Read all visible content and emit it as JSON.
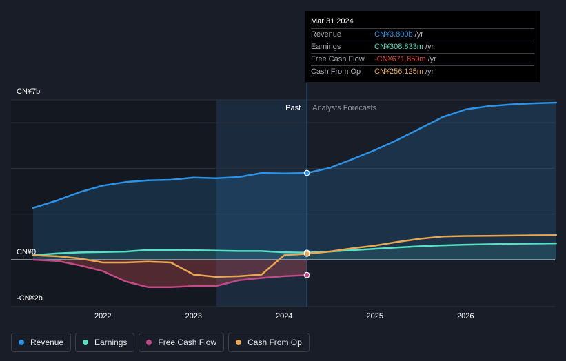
{
  "chart_data": {
    "type": "line",
    "title": "",
    "y_unit_labels": [
      "CN¥7b",
      "CN¥0",
      "-CN¥2b"
    ],
    "ylim": [
      -2,
      7
    ],
    "xlim": [
      2021.23,
      2027.0
    ],
    "x_ticks": [
      {
        "value": 2022,
        "label": "2022"
      },
      {
        "value": 2023,
        "label": "2023"
      },
      {
        "value": 2024,
        "label": "2024"
      },
      {
        "value": 2025,
        "label": "2025"
      },
      {
        "value": 2026,
        "label": "2026"
      }
    ],
    "gridlines": [
      7,
      6,
      4,
      2,
      0
    ],
    "forecast_split": 2024.25,
    "highlight_start": 2023.25,
    "past_label": "Past",
    "forecast_label": "Analysts Forecasts",
    "series": [
      {
        "name": "Revenue",
        "color": "#2e93e6",
        "area": true,
        "points": [
          [
            2021.23,
            2.27
          ],
          [
            2021.5,
            2.6
          ],
          [
            2021.75,
            2.97
          ],
          [
            2022.0,
            3.25
          ],
          [
            2022.25,
            3.4
          ],
          [
            2022.5,
            3.48
          ],
          [
            2022.75,
            3.5
          ],
          [
            2023.0,
            3.6
          ],
          [
            2023.25,
            3.57
          ],
          [
            2023.5,
            3.62
          ],
          [
            2023.75,
            3.8
          ],
          [
            2024.0,
            3.78
          ],
          [
            2024.25,
            3.8
          ],
          [
            2024.5,
            4.02
          ],
          [
            2024.75,
            4.4
          ],
          [
            2025.0,
            4.8
          ],
          [
            2025.25,
            5.25
          ],
          [
            2025.5,
            5.75
          ],
          [
            2025.75,
            6.25
          ],
          [
            2026.0,
            6.58
          ],
          [
            2026.25,
            6.72
          ],
          [
            2026.5,
            6.8
          ],
          [
            2026.75,
            6.85
          ],
          [
            2027.0,
            6.88
          ]
        ]
      },
      {
        "name": "Earnings",
        "color": "#58e0c3",
        "area": true,
        "points": [
          [
            2021.23,
            0.2
          ],
          [
            2021.5,
            0.28
          ],
          [
            2021.75,
            0.32
          ],
          [
            2022.0,
            0.34
          ],
          [
            2022.25,
            0.36
          ],
          [
            2022.5,
            0.43
          ],
          [
            2022.75,
            0.43
          ],
          [
            2023.0,
            0.42
          ],
          [
            2023.25,
            0.4
          ],
          [
            2023.5,
            0.38
          ],
          [
            2023.75,
            0.38
          ],
          [
            2024.0,
            0.33
          ],
          [
            2024.25,
            0.31
          ],
          [
            2024.5,
            0.36
          ],
          [
            2024.75,
            0.42
          ],
          [
            2025.0,
            0.48
          ],
          [
            2025.25,
            0.54
          ],
          [
            2025.5,
            0.59
          ],
          [
            2025.75,
            0.63
          ],
          [
            2026.0,
            0.66
          ],
          [
            2026.25,
            0.68
          ],
          [
            2026.5,
            0.7
          ],
          [
            2026.75,
            0.71
          ],
          [
            2027.0,
            0.72
          ]
        ]
      },
      {
        "name": "Free Cash Flow",
        "color": "#c24a86",
        "area": true,
        "points": [
          [
            2021.23,
            0.0
          ],
          [
            2021.5,
            -0.05
          ],
          [
            2021.75,
            -0.25
          ],
          [
            2022.0,
            -0.5
          ],
          [
            2022.25,
            -0.95
          ],
          [
            2022.5,
            -1.2
          ],
          [
            2022.75,
            -1.2
          ],
          [
            2023.0,
            -1.15
          ],
          [
            2023.25,
            -1.15
          ],
          [
            2023.5,
            -0.9
          ],
          [
            2023.75,
            -0.8
          ],
          [
            2024.0,
            -0.72
          ],
          [
            2024.25,
            -0.67
          ]
        ]
      },
      {
        "name": "Cash From Op",
        "color": "#e7a754",
        "area": false,
        "points": [
          [
            2021.23,
            0.2
          ],
          [
            2021.5,
            0.15
          ],
          [
            2021.75,
            0.05
          ],
          [
            2022.0,
            -0.12
          ],
          [
            2022.25,
            -0.12
          ],
          [
            2022.5,
            -0.08
          ],
          [
            2022.75,
            -0.12
          ],
          [
            2023.0,
            -0.65
          ],
          [
            2023.25,
            -0.75
          ],
          [
            2023.5,
            -0.72
          ],
          [
            2023.75,
            -0.65
          ],
          [
            2024.0,
            0.2
          ],
          [
            2024.25,
            0.26
          ],
          [
            2024.5,
            0.36
          ],
          [
            2024.75,
            0.5
          ],
          [
            2025.0,
            0.62
          ],
          [
            2025.25,
            0.78
          ],
          [
            2025.5,
            0.92
          ],
          [
            2025.75,
            1.02
          ],
          [
            2026.0,
            1.04
          ],
          [
            2026.25,
            1.05
          ],
          [
            2026.5,
            1.06
          ],
          [
            2026.75,
            1.07
          ],
          [
            2027.0,
            1.08
          ]
        ]
      }
    ],
    "markers": [
      {
        "series": "Revenue",
        "x": 2024.25,
        "y": 3.8
      },
      {
        "series": "Earnings",
        "x": 2024.25,
        "y": 0.31
      },
      {
        "series": "Cash From Op",
        "x": 2024.25,
        "y": 0.26
      },
      {
        "series": "Free Cash Flow",
        "x": 2024.25,
        "y": -0.67
      }
    ]
  },
  "tooltip": {
    "date": "Mar 31 2024",
    "rows": [
      {
        "label": "Revenue",
        "value": "CN¥3.800b",
        "unit": "/yr",
        "color": "#2e93e6"
      },
      {
        "label": "Earnings",
        "value": "CN¥308.833m",
        "unit": "/yr",
        "color": "#58e0c3"
      },
      {
        "label": "Free Cash Flow",
        "value": "-CN¥671.850m",
        "unit": "/yr",
        "color": "#e0483f"
      },
      {
        "label": "Cash From Op",
        "value": "CN¥256.125m",
        "unit": "/yr",
        "color": "#e7a754"
      }
    ]
  },
  "legend": [
    {
      "label": "Revenue",
      "color": "#2e93e6"
    },
    {
      "label": "Earnings",
      "color": "#58e0c3"
    },
    {
      "label": "Free Cash Flow",
      "color": "#c24a86"
    },
    {
      "label": "Cash From Op",
      "color": "#e7a754"
    }
  ]
}
